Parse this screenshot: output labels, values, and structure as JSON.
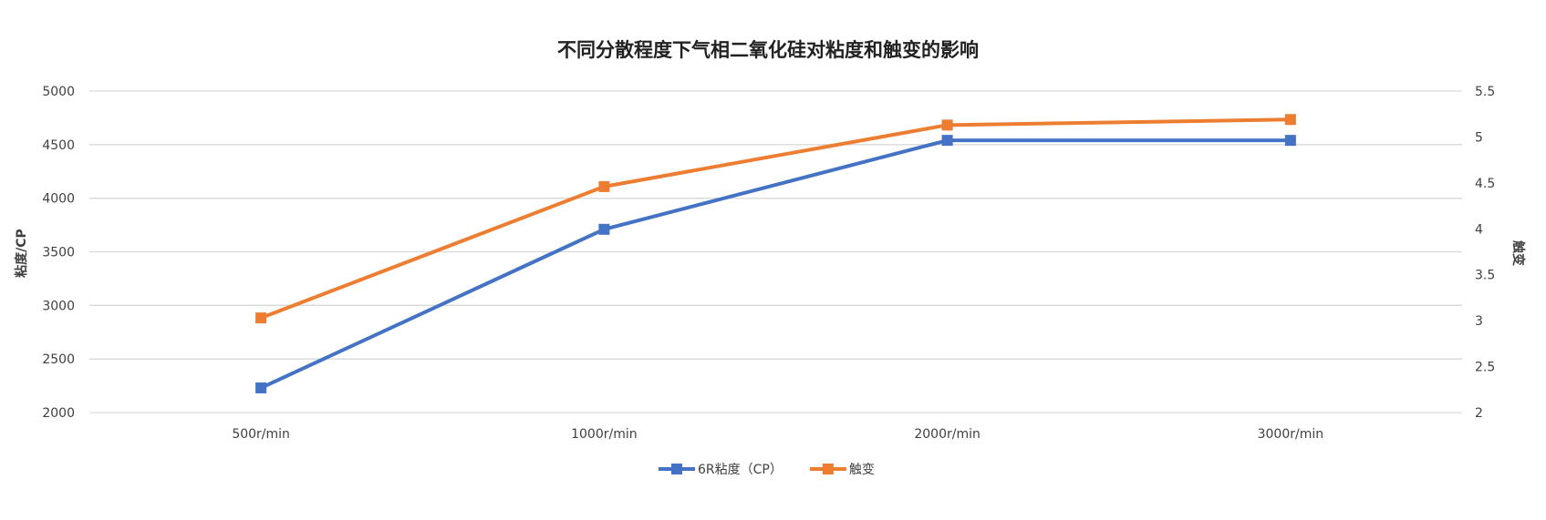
{
  "chart_data": {
    "type": "line",
    "title": "不同分散程度下气相二氧化硅对粘度和触变的影响",
    "categories": [
      "500r/min",
      "1000r/min",
      "2000r/min",
      "3000r/min"
    ],
    "ylabel": "粘度/CP",
    "y2label": "触变",
    "ylim": [
      2000,
      5000
    ],
    "yticks": [
      2000,
      2500,
      3000,
      3500,
      4000,
      4500,
      5000
    ],
    "y2lim": [
      2,
      5.5
    ],
    "y2ticks": [
      2,
      2.5,
      3,
      3.5,
      4,
      4.5,
      5,
      5.5
    ],
    "grid": true,
    "legend_position": "bottom",
    "series": [
      {
        "name": "6R粘度（CP）",
        "axis": "left",
        "color": "#4472C4",
        "marker": "square",
        "values": [
          2230,
          3710,
          4540,
          4540
        ]
      },
      {
        "name": "触变",
        "axis": "right",
        "color": "#ED7D31",
        "marker": "square",
        "values": [
          3.03,
          4.46,
          5.13,
          5.19
        ]
      }
    ]
  }
}
